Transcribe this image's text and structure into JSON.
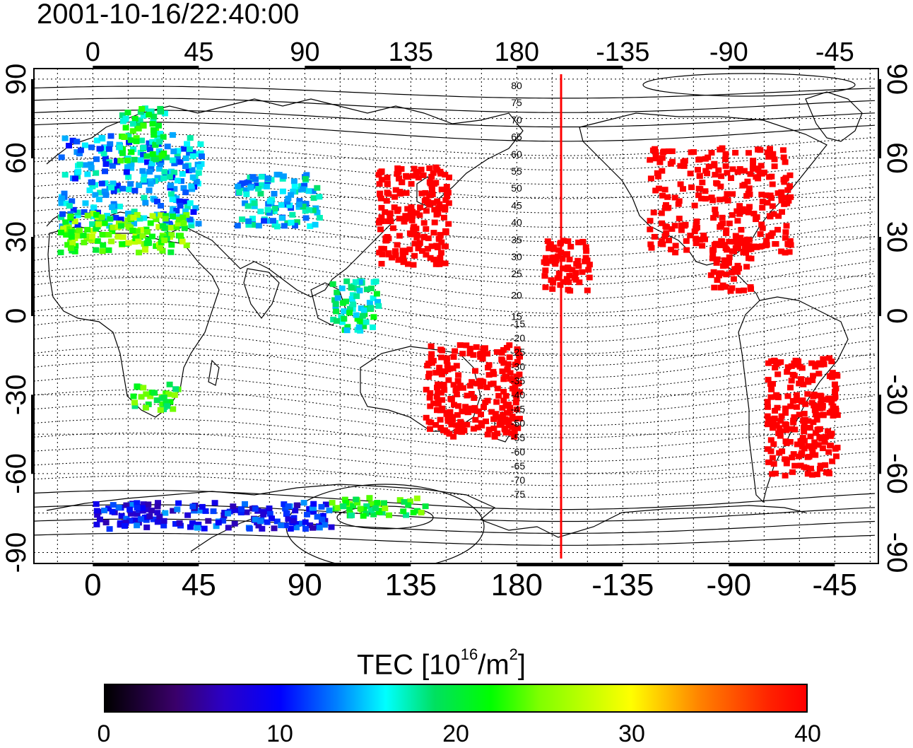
{
  "timestamp": "2001-10-16/22:40:00",
  "map": {
    "lon_ticks_top": [
      "0",
      "45",
      "90",
      "135",
      "180",
      "-135",
      "-90",
      "-45"
    ],
    "lon_ticks_bottom": [
      "0",
      "45",
      "90",
      "135",
      "180",
      "-135",
      "-90",
      "-45"
    ],
    "lat_ticks_left": [
      "90",
      "60",
      "30",
      "0",
      "-30",
      "-60",
      "-90"
    ],
    "lat_ticks_right": [
      "90",
      "60",
      "30",
      "0",
      "-30",
      "-60",
      "-90"
    ],
    "contour_labels_north": [
      "80",
      "75",
      "70",
      "65",
      "60",
      "55",
      "50",
      "45",
      "40",
      "35",
      "30",
      "25",
      "20",
      "15"
    ],
    "contour_labels_south": [
      "-15",
      "-20",
      "-25",
      "-30",
      "-35",
      "-40",
      "-45",
      "-50",
      "-55",
      "-60",
      "-65",
      "-70",
      "-75"
    ],
    "terminator_longitude": -157.5,
    "grid": "dotted every 15 degrees"
  },
  "colorbar": {
    "title_main": "TEC  [10",
    "title_exp": "16",
    "title_unit": "/m",
    "title_exp2": "2",
    "title_end": "]",
    "min": 0,
    "max": 40,
    "labels": [
      "0",
      "10",
      "20",
      "30",
      "40"
    ],
    "colormap": "jet-like: black - purple - blue - cyan - green - yellow - orange - red"
  },
  "chart_data": {
    "type": "heatmap",
    "variable": "TEC",
    "units": "10^16/m^2",
    "range": [
      0,
      40
    ],
    "regions": [
      {
        "lon": [
          -15,
          45
        ],
        "lat": [
          35,
          70
        ],
        "tec": 14
      },
      {
        "lon": [
          -15,
          40
        ],
        "lat": [
          25,
          40
        ],
        "tec": 24
      },
      {
        "lon": [
          60,
          95
        ],
        "lat": [
          35,
          55
        ],
        "tec": 15
      },
      {
        "lon": [
          120,
          150
        ],
        "lat": [
          20,
          58
        ],
        "tec": 40
      },
      {
        "lon": [
          -125,
          -65
        ],
        "lat": [
          25,
          65
        ],
        "tec": 40
      },
      {
        "lon": [
          -100,
          -80
        ],
        "lat": [
          10,
          30
        ],
        "tec": 40
      },
      {
        "lon": [
          -75,
          -45
        ],
        "lat": [
          -60,
          -15
        ],
        "tec": 40
      },
      {
        "lon": [
          140,
          180
        ],
        "lat": [
          -45,
          -10
        ],
        "tec": 40
      },
      {
        "lon": [
          15,
          35
        ],
        "lat": [
          -35,
          -25
        ],
        "tec": 22
      },
      {
        "lon": [
          -170,
          -150
        ],
        "lat": [
          10,
          30
        ],
        "tec": 40
      },
      {
        "lon": [
          0,
          100
        ],
        "lat": [
          -80,
          -70
        ],
        "tec": 10
      },
      {
        "lon": [
          100,
          140
        ],
        "lat": [
          -75,
          -68
        ],
        "tec": 22
      },
      {
        "lon": [
          100,
          120
        ],
        "lat": [
          -5,
          15
        ],
        "tec": 18
      },
      {
        "lon": [
          10,
          30
        ],
        "lat": [
          60,
          80
        ],
        "tec": 20
      }
    ]
  }
}
